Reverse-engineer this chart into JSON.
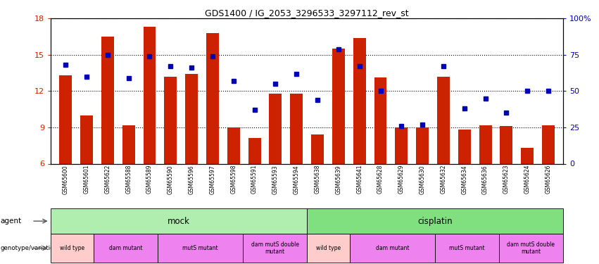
{
  "title": "GDS1400 / IG_2053_3296533_3297112_rev_st",
  "samples": [
    "GSM65600",
    "GSM65601",
    "GSM65622",
    "GSM65588",
    "GSM65589",
    "GSM65590",
    "GSM65596",
    "GSM65597",
    "GSM65598",
    "GSM65591",
    "GSM65593",
    "GSM65594",
    "GSM65638",
    "GSM65639",
    "GSM65641",
    "GSM65628",
    "GSM65629",
    "GSM65630",
    "GSM65632",
    "GSM65634",
    "GSM65636",
    "GSM65623",
    "GSM65624",
    "GSM65626"
  ],
  "bar_values": [
    13.3,
    10.0,
    16.5,
    9.2,
    17.3,
    13.2,
    13.4,
    16.8,
    9.0,
    8.1,
    11.8,
    11.8,
    8.4,
    15.5,
    16.4,
    13.1,
    9.0,
    9.0,
    13.2,
    8.8,
    9.2,
    9.1,
    7.3,
    9.2
  ],
  "percentile_values": [
    68,
    60,
    75,
    59,
    74,
    67,
    66,
    74,
    57,
    37,
    55,
    62,
    44,
    79,
    67,
    50,
    26,
    27,
    67,
    38,
    45,
    35,
    50,
    50
  ],
  "ylim_left": [
    6,
    18
  ],
  "ylim_right": [
    0,
    100
  ],
  "bar_color": "#CC2200",
  "dot_color": "#0000BB",
  "yticks_left": [
    6,
    9,
    12,
    15,
    18
  ],
  "yticks_right": [
    0,
    25,
    50,
    75,
    100
  ],
  "agent_groups": [
    {
      "label": "mock",
      "start": 0,
      "end": 11,
      "color": "#B0EEB0"
    },
    {
      "label": "cisplatin",
      "start": 12,
      "end": 23,
      "color": "#80E080"
    }
  ],
  "genotype_groups": [
    {
      "label": "wild type",
      "start": 0,
      "end": 1,
      "color": "#FFCCCC"
    },
    {
      "label": "dam mutant",
      "start": 2,
      "end": 4,
      "color": "#EE82EE"
    },
    {
      "label": "mutS mutant",
      "start": 5,
      "end": 8,
      "color": "#EE82EE"
    },
    {
      "label": "dam mutS double\nmutant",
      "start": 9,
      "end": 11,
      "color": "#EE82EE"
    },
    {
      "label": "wild type",
      "start": 12,
      "end": 13,
      "color": "#FFCCCC"
    },
    {
      "label": "dam mutant",
      "start": 14,
      "end": 17,
      "color": "#EE82EE"
    },
    {
      "label": "mutS mutant",
      "start": 18,
      "end": 20,
      "color": "#EE82EE"
    },
    {
      "label": "dam mutS double\nmutant",
      "start": 21,
      "end": 23,
      "color": "#EE82EE"
    }
  ]
}
